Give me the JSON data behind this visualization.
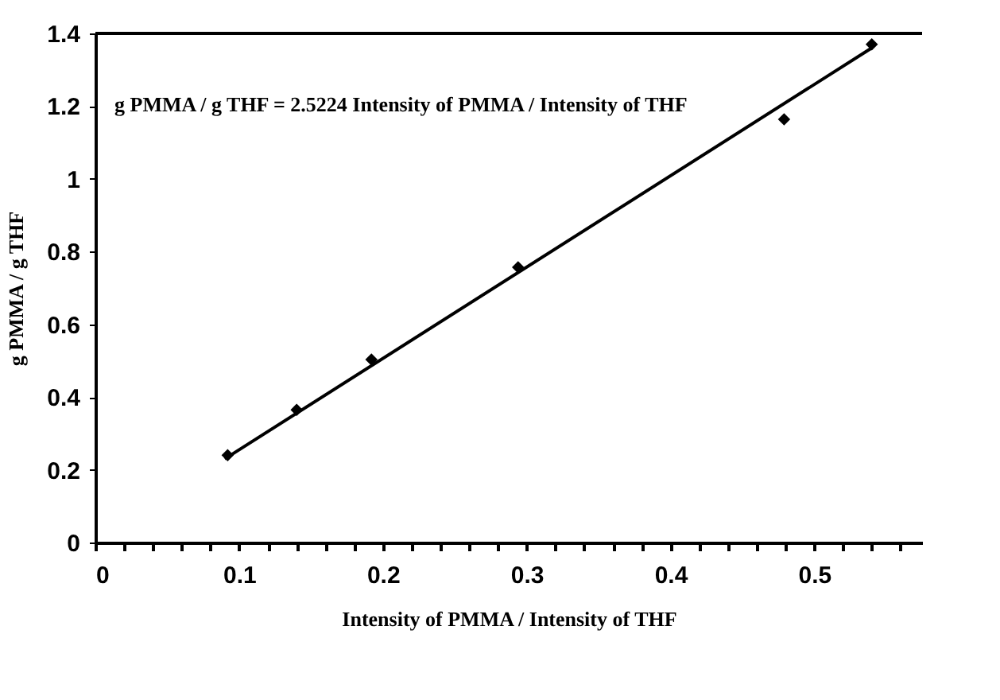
{
  "chart_data": {
    "type": "scatter",
    "xlabel": "Intensity of PMMA / Intensity of THF",
    "ylabel": "g PMMA / g THF",
    "annotations": [
      "g PMMA / g THF = 2.5224 Intensity of PMMA / Intensity of THF"
    ],
    "series": [
      {
        "marker": "diamond",
        "color": "#000000",
        "x": [
          0.092,
          0.14,
          0.192,
          0.294,
          0.479,
          0.54
        ],
        "values": [
          0.24,
          0.365,
          0.503,
          0.757,
          1.164,
          1.37
        ]
      },
      {
        "type": "line",
        "color": "#000000",
        "line_style": "solid",
        "x": [
          0.09,
          0.54
        ],
        "values": [
          0.23,
          1.36
        ]
      }
    ],
    "xlim": [
      0,
      0.575
    ],
    "xticks": [
      0,
      {
        "value": 0.02,
        "label": null
      },
      {
        "value": 0.04,
        "label": null
      },
      {
        "value": 0.06,
        "label": null
      },
      {
        "value": 0.08,
        "label": null
      },
      0.1,
      {
        "value": 0.12,
        "label": null
      },
      {
        "value": 0.14,
        "label": null
      },
      {
        "value": 0.16,
        "label": null
      },
      {
        "value": 0.18,
        "label": null
      },
      0.2,
      {
        "value": 0.22,
        "label": null
      },
      {
        "value": 0.24,
        "label": null
      },
      {
        "value": 0.26,
        "label": null
      },
      {
        "value": 0.28,
        "label": null
      },
      0.3,
      {
        "value": 0.32,
        "label": null
      },
      {
        "value": 0.34,
        "label": null
      },
      {
        "value": 0.36,
        "label": null
      },
      {
        "value": 0.38,
        "label": null
      },
      0.4,
      {
        "value": 0.42,
        "label": null
      },
      {
        "value": 0.44,
        "label": null
      },
      {
        "value": 0.46,
        "label": null
      },
      {
        "value": 0.48,
        "label": null
      },
      0.5,
      {
        "value": 0.52,
        "label": null
      },
      {
        "value": 0.54,
        "label": null
      },
      {
        "value": 0.56,
        "label": null
      }
    ],
    "ylim": [
      0,
      1.4
    ],
    "yticks": [
      0,
      0.2,
      0.4,
      0.6,
      0.8,
      1,
      1.2,
      1.4
    ]
  }
}
